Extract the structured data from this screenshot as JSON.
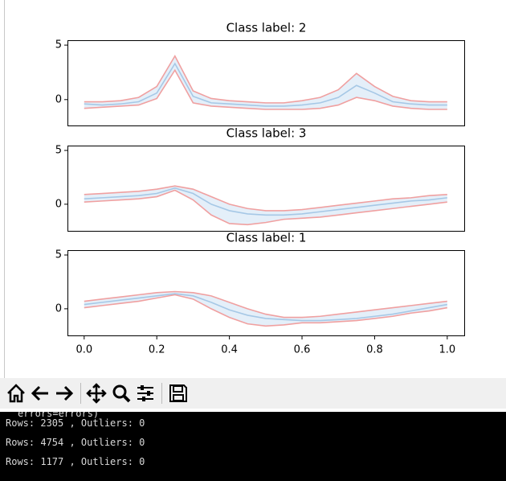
{
  "chart_data": [
    {
      "type": "line",
      "title": "Class label: 2",
      "x": [
        0,
        0.05,
        0.1,
        0.15,
        0.2,
        0.25,
        0.3,
        0.35,
        0.4,
        0.45,
        0.5,
        0.55,
        0.6,
        0.65,
        0.7,
        0.75,
        0.8,
        0.85,
        0.9,
        0.95,
        1
      ],
      "series": [
        {
          "color": "#a6c8e6",
          "values": [
            -0.4,
            -0.5,
            -0.4,
            -0.2,
            0.6,
            3.3,
            0.3,
            -0.3,
            -0.4,
            -0.5,
            -0.6,
            -0.6,
            -0.5,
            -0.3,
            0.2,
            1.3,
            0.6,
            -0.2,
            -0.4,
            -0.5,
            -0.5
          ]
        },
        {
          "color": "#f0a0a0",
          "values": [
            -0.2,
            -0.2,
            -0.1,
            0.2,
            1.2,
            4.0,
            0.8,
            0.1,
            -0.1,
            -0.2,
            -0.3,
            -0.3,
            -0.1,
            0.2,
            0.9,
            2.4,
            1.2,
            0.3,
            -0.1,
            -0.2,
            -0.2
          ]
        },
        {
          "color": "#f0a0a0",
          "values": [
            -0.8,
            -0.7,
            -0.6,
            -0.5,
            0.1,
            2.7,
            -0.3,
            -0.6,
            -0.7,
            -0.8,
            -0.9,
            -0.9,
            -0.9,
            -0.8,
            -0.5,
            0.2,
            -0.1,
            -0.6,
            -0.8,
            -0.9,
            -0.9
          ]
        }
      ],
      "band_color": "#e4eff9",
      "xlim": [
        -0.046,
        1.049
      ],
      "ylim": [
        -2.45,
        5.45
      ],
      "yticks": [
        0,
        5
      ]
    },
    {
      "type": "line",
      "title": "Class label: 3",
      "x": [
        0,
        0.05,
        0.1,
        0.15,
        0.2,
        0.25,
        0.3,
        0.35,
        0.4,
        0.45,
        0.5,
        0.55,
        0.6,
        0.65,
        0.7,
        0.75,
        0.8,
        0.85,
        0.9,
        0.95,
        1
      ],
      "series": [
        {
          "color": "#a6c8e6",
          "values": [
            0.5,
            0.6,
            0.7,
            0.8,
            1.0,
            1.5,
            1.0,
            0.0,
            -0.6,
            -0.9,
            -1.0,
            -1.0,
            -0.9,
            -0.7,
            -0.5,
            -0.3,
            -0.1,
            0.1,
            0.3,
            0.4,
            0.6
          ]
        },
        {
          "color": "#f0a0a0",
          "values": [
            0.9,
            1.0,
            1.1,
            1.2,
            1.4,
            1.7,
            1.4,
            0.7,
            0.0,
            -0.4,
            -0.6,
            -0.6,
            -0.5,
            -0.3,
            -0.1,
            0.1,
            0.3,
            0.5,
            0.6,
            0.8,
            0.9
          ]
        },
        {
          "color": "#f0a0a0",
          "values": [
            0.2,
            0.3,
            0.4,
            0.5,
            0.7,
            1.3,
            0.4,
            -1.0,
            -1.8,
            -1.9,
            -1.7,
            -1.4,
            -1.3,
            -1.2,
            -1.0,
            -0.8,
            -0.6,
            -0.4,
            -0.2,
            0.0,
            0.2
          ]
        }
      ],
      "band_color": "#e4eff9",
      "xlim": [
        -0.046,
        1.049
      ],
      "ylim": [
        -2.55,
        5.45
      ],
      "yticks": [
        0,
        5
      ]
    },
    {
      "type": "line",
      "title": "Class label: 1",
      "x": [
        0,
        0.05,
        0.1,
        0.15,
        0.2,
        0.25,
        0.3,
        0.35,
        0.4,
        0.45,
        0.5,
        0.55,
        0.6,
        0.65,
        0.7,
        0.75,
        0.8,
        0.85,
        0.9,
        0.95,
        1
      ],
      "series": [
        {
          "color": "#a6c8e6",
          "values": [
            0.4,
            0.6,
            0.8,
            1.0,
            1.2,
            1.4,
            1.2,
            0.6,
            -0.1,
            -0.6,
            -0.9,
            -1.0,
            -1.1,
            -1.1,
            -1.0,
            -0.9,
            -0.7,
            -0.5,
            -0.2,
            0.1,
            0.4
          ]
        },
        {
          "color": "#f0a0a0",
          "values": [
            0.7,
            0.9,
            1.1,
            1.3,
            1.5,
            1.6,
            1.5,
            1.2,
            0.6,
            0.0,
            -0.5,
            -0.8,
            -0.8,
            -0.7,
            -0.5,
            -0.3,
            -0.1,
            0.1,
            0.3,
            0.5,
            0.7
          ]
        },
        {
          "color": "#f0a0a0",
          "values": [
            0.1,
            0.3,
            0.5,
            0.7,
            1.0,
            1.3,
            0.9,
            0.0,
            -0.8,
            -1.4,
            -1.6,
            -1.5,
            -1.3,
            -1.3,
            -1.2,
            -1.1,
            -0.9,
            -0.7,
            -0.4,
            -0.2,
            0.1
          ]
        }
      ],
      "band_color": "#e4eff9",
      "xlim": [
        -0.046,
        1.049
      ],
      "ylim": [
        -2.55,
        5.45
      ],
      "yticks": [
        0,
        5
      ],
      "xticks": [
        {
          "value": 0,
          "label": "0.0"
        },
        0.2,
        0.4,
        0.6,
        0.8,
        {
          "value": 1,
          "label": "1.0"
        }
      ]
    }
  ],
  "terminal": {
    "lines": [
      "errors=errors)",
      "Rows: 2305 , Outliers: 0",
      "Rows: 4754 , Outliers: 0",
      "Rows: 1177 , Outliers: 0"
    ]
  }
}
